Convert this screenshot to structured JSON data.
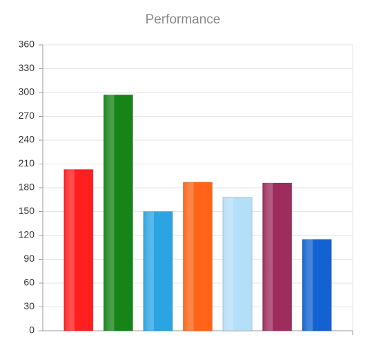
{
  "chart_data": {
    "type": "bar",
    "title": "Performance",
    "categories": [
      null,
      null,
      null,
      null,
      null,
      null,
      null
    ],
    "values": [
      203,
      297,
      150,
      187,
      168,
      186,
      115
    ],
    "colors": [
      "#ff1f1f",
      "#168416",
      "#2aa4e2",
      "#ff6418",
      "#b5def8",
      "#9c2d5c",
      "#1462d2"
    ],
    "ylim": [
      0,
      360
    ],
    "yticks": [
      0,
      30,
      60,
      90,
      120,
      150,
      180,
      210,
      240,
      270,
      300,
      330,
      360
    ],
    "grid": true
  }
}
